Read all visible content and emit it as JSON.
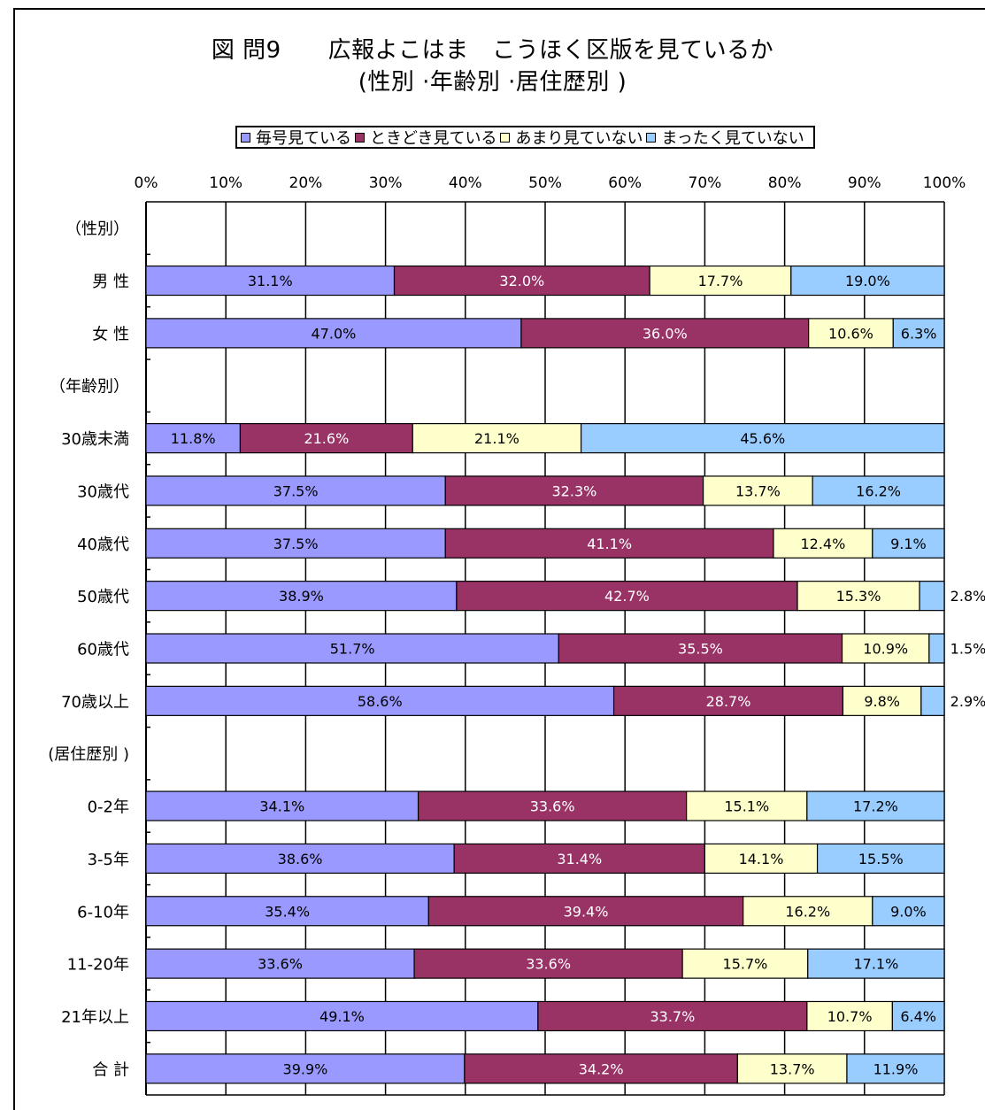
{
  "chart_data": {
    "type": "bar",
    "orientation": "horizontal",
    "stacked": true,
    "percent_scale": true,
    "title": "図 問9　　広報よこはま　こうほく区版を見ているか",
    "subtitle": "(性別 ·年齢別 ·居住歴別 )",
    "legend_position": "top",
    "xlim": [
      0,
      100
    ],
    "x_ticks": [
      "0%",
      "10%",
      "20%",
      "30%",
      "40%",
      "50%",
      "60%",
      "70%",
      "80%",
      "90%",
      "100%"
    ],
    "grid": true,
    "categories": [
      "（性別）",
      "男 性",
      "女 性",
      "（年齢別）",
      "30歳未満",
      "30歳代",
      "40歳代",
      "50歳代",
      "60歳代",
      "70歳以上",
      "(居住歴別 )",
      "0-2年",
      "3-5年",
      "6-10年",
      "11-20年",
      "21年以上",
      "合 計"
    ],
    "series": [
      {
        "name": "毎号見ている",
        "color": "#9999ff",
        "values": [
          null,
          31.1,
          47.0,
          null,
          11.8,
          37.5,
          37.5,
          38.9,
          51.7,
          58.6,
          null,
          34.1,
          38.6,
          35.4,
          33.6,
          49.1,
          39.9
        ],
        "labels": [
          null,
          "31.1%",
          "47.0%",
          null,
          "11.8%",
          "37.5%",
          "37.5%",
          "38.9%",
          "51.7%",
          "58.6%",
          null,
          "34.1%",
          "38.6%",
          "35.4%",
          "33.6%",
          "49.1%",
          "39.9%"
        ]
      },
      {
        "name": "ときどき見ている",
        "color": "#993366",
        "values": [
          null,
          32.0,
          36.0,
          null,
          21.6,
          32.3,
          41.1,
          42.7,
          35.5,
          28.7,
          null,
          33.6,
          31.4,
          39.4,
          33.6,
          33.7,
          34.2
        ],
        "labels": [
          null,
          "32.0%",
          "36.0%",
          null,
          "21.6%",
          "32.3%",
          "41.1%",
          "42.7%",
          "35.5%",
          "28.7%",
          null,
          "33.6%",
          "31.4%",
          "39.4%",
          "33.6%",
          "33.7%",
          "34.2%"
        ]
      },
      {
        "name": "あまり見ていない",
        "color": "#ffffcc",
        "values": [
          null,
          17.7,
          10.6,
          null,
          21.1,
          13.7,
          12.4,
          15.3,
          10.9,
          9.8,
          null,
          15.1,
          14.1,
          16.2,
          15.7,
          10.7,
          13.7
        ],
        "labels": [
          null,
          "17.7%",
          "10.6%",
          null,
          "21.1%",
          "13.7%",
          "12.4%",
          "15.3%",
          "10.9%",
          "9.8%",
          null,
          "15.1%",
          "14.1%",
          "16.2%",
          "15.7%",
          "10.7%",
          "13.7%"
        ]
      },
      {
        "name": "まったく見ていない",
        "color": "#99ccff",
        "values": [
          null,
          19.0,
          6.3,
          null,
          45.6,
          16.2,
          9.1,
          2.8,
          1.5,
          2.9,
          null,
          17.2,
          15.5,
          9.0,
          17.1,
          6.4,
          11.9
        ],
        "labels": [
          null,
          "19.0%",
          "6.3%",
          null,
          "45.6%",
          "16.2%",
          "9.1%",
          "2.8%",
          "1.5%",
          "2.9%",
          null,
          "17.2%",
          "15.5%",
          "9.0%",
          "17.1%",
          "6.4%",
          "11.9%"
        ]
      }
    ]
  }
}
